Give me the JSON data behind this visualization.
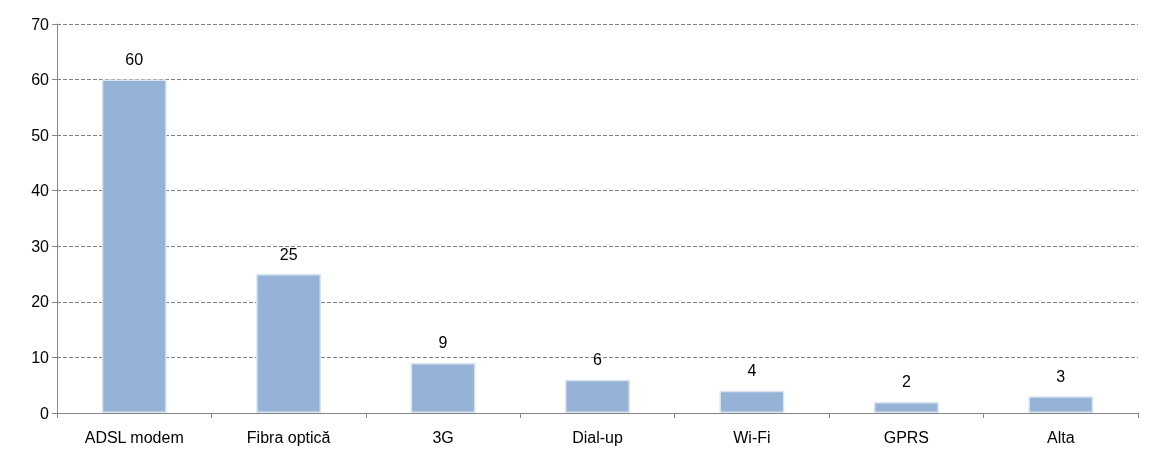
{
  "chart_data": {
    "type": "bar",
    "categories": [
      "ADSL modem",
      "Fibra optică",
      "3G",
      "Dial-up",
      "Wi-Fi",
      "GPRS",
      "Alta"
    ],
    "values": [
      60,
      25,
      9,
      6,
      4,
      2,
      3
    ],
    "color": "#95b3d7",
    "data_labels": true,
    "grid": "y",
    "line_style": "dashed",
    "ylim": [
      0,
      70
    ],
    "yticks": [
      0,
      10,
      20,
      30,
      40,
      50,
      60,
      70
    ]
  }
}
